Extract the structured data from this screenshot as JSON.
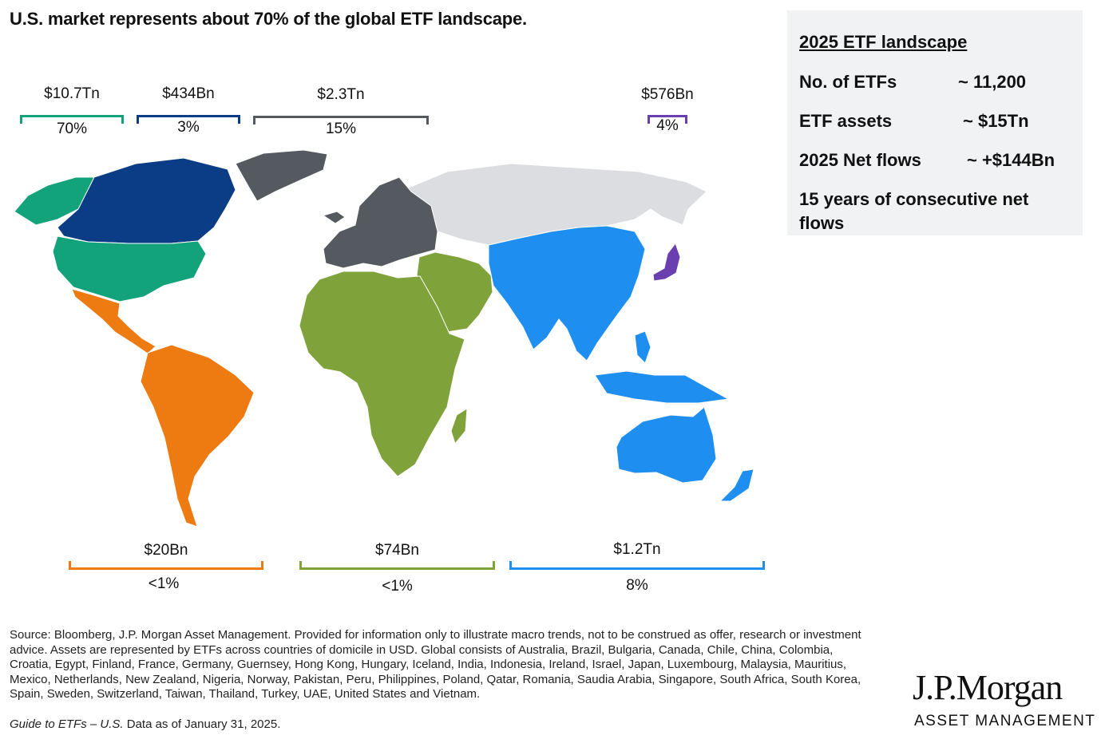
{
  "title": "U.S. market represents about 70% of the global ETF landscape.",
  "panel": {
    "heading": "2025 ETF landscape",
    "stats": [
      {
        "label": "No. of ETFs",
        "value": "~ 11,200"
      },
      {
        "label": "ETF assets",
        "value": "~ $15Tn"
      },
      {
        "label": "2025 Net flows",
        "value": "~ +$144Bn"
      }
    ],
    "note": "15 years of consecutive net flows"
  },
  "regions": [
    {
      "amount": "$10.7Tn",
      "share": "70%",
      "color": "#12a37a"
    },
    {
      "amount": "$434Bn",
      "share": "3%",
      "color": "#0a3d85"
    },
    {
      "amount": "$2.3Tn",
      "share": "15%",
      "color": "#555a60"
    },
    {
      "amount": "$576Bn",
      "share": "4%",
      "color": "#6a3fb0"
    },
    {
      "amount": "$20Bn",
      "share": "<1%",
      "color": "#ee7a12"
    },
    {
      "amount": "$74Bn",
      "share": "<1%",
      "color": "#7fa33a"
    },
    {
      "amount": "$1.2Tn",
      "share": "8%",
      "color": "#1e8ff0"
    }
  ],
  "map_colors": {
    "unreported": "#dcdde0",
    "usa": "#12a37a",
    "canada": "#0a3d85",
    "europe": "#555a60",
    "japan": "#6a3fb0",
    "latin_america": "#ee7a12",
    "africa_middle_east": "#7fa33a",
    "asia_pacific": "#1e8ff0"
  },
  "source": {
    "text": "Source: Bloomberg, J.P. Morgan Asset Management. Provided for information only to illustrate macro trends, not to be construed as offer, research or investment advice. Assets are represented by ETFs across countries of domicile in USD. Global consists of Australia, Brazil, Bulgaria, Canada, Chile, China, Colombia, Croatia, Egypt, Finland, France, Germany, Guernsey, Hong Kong, Hungary, Iceland, India, Indonesia, Ireland, Israel, Japan, Luxembourg, Malaysia, Mauritius, Mexico, Netherlands, New Zealand, Nigeria, Norway, Pakistan, Peru, Philippines, Poland, Qatar, Romania, Saudia Arabia, Singapore, South Africa, South Korea, Spain, Sweden, Switzerland, Taiwan, Thailand, Turkey, UAE, United States and Vietnam.",
    "guide": "Guide to ETFs – U.S.",
    "date": " Data as of January 31, 2025."
  },
  "logo": {
    "name": "J.P.Morgan",
    "sub": "ASSET MANAGEMENT"
  }
}
